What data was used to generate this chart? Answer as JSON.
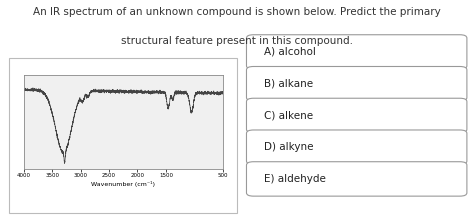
{
  "title_line1": "An IR spectrum of an unknown compound is shown below. Predict the primary",
  "title_line2": "structural feature present in this compound.",
  "title_fontsize": 7.5,
  "options": [
    "A) alcohol",
    "B) alkane",
    "C) alkene",
    "D) alkyne",
    "E) aldehyde"
  ],
  "option_fontsize": 7.5,
  "bg_color": "#ffffff",
  "box_color": "#ffffff",
  "box_edge_color": "#999999",
  "spectrum_line_color": "#444444",
  "xlabel": "Wavenumber (cm⁻¹)",
  "xlabel_fontsize": 4.5,
  "tick_fontsize": 4,
  "outer_panel_color": "#cccccc",
  "spectrum_bg": "#f0f0f0"
}
